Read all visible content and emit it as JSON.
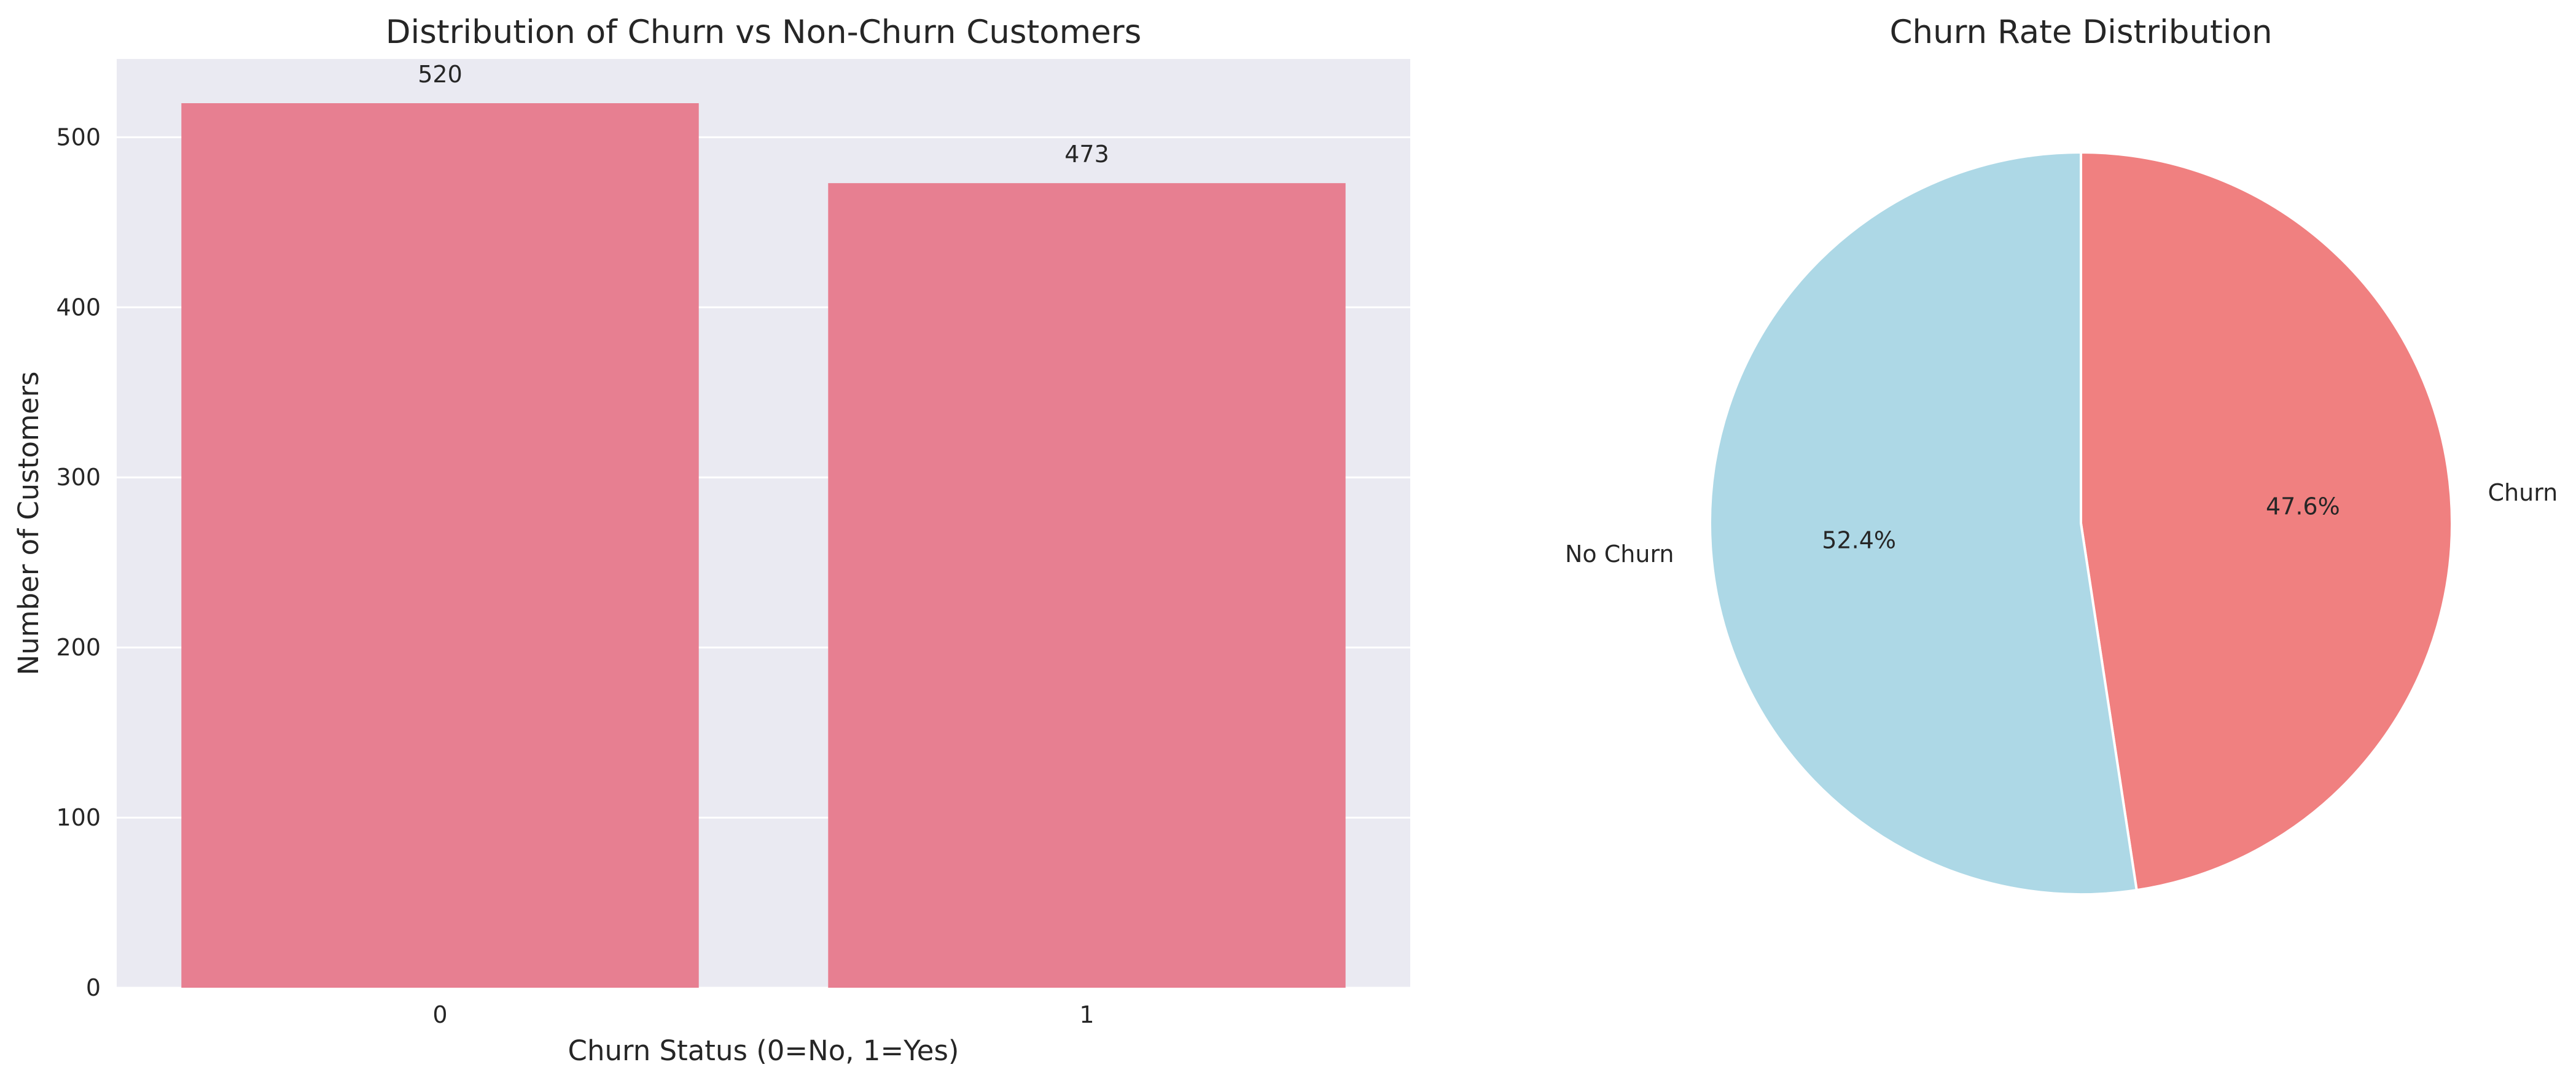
{
  "chart_data": [
    {
      "type": "bar",
      "title": "Distribution of Churn vs Non-Churn Customers",
      "xlabel": "Churn Status (0=No, 1=Yes)",
      "ylabel": "Number of Customers",
      "categories": [
        "0",
        "1"
      ],
      "values": [
        520,
        473
      ],
      "data_labels": [
        "520",
        "473"
      ],
      "ylim": [
        0,
        546
      ],
      "yticks": [
        0,
        100,
        200,
        300,
        400,
        500
      ],
      "grid": true,
      "bar_color": "#e77f91",
      "background_color": "#eaeaf2",
      "grid_color": "#ffffff"
    },
    {
      "type": "pie",
      "title": "Churn Rate Distribution",
      "start_angle_deg": 90,
      "direction": "clockwise",
      "slices": [
        {
          "label": "Churn",
          "value": 47.6,
          "pct_label": "47.6%",
          "color": "#f08080"
        },
        {
          "label": "No Churn",
          "value": 52.4,
          "pct_label": "52.4%",
          "color": "#add8e6"
        }
      ]
    }
  ]
}
